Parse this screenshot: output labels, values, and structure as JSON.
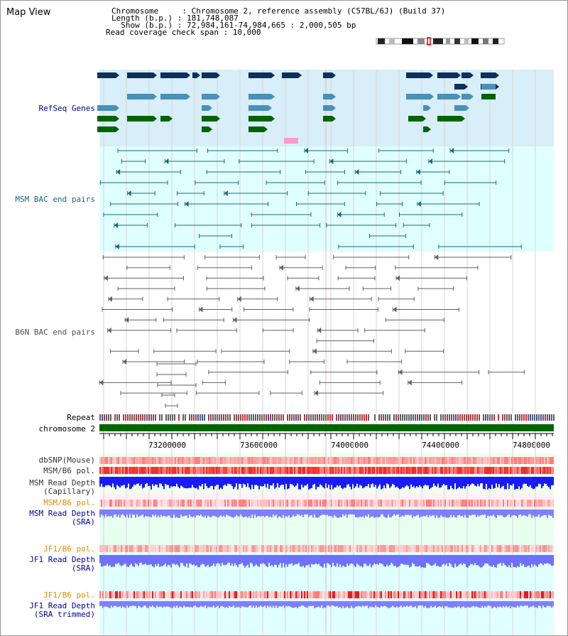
{
  "page_title": "Map View",
  "header": {
    "chromosome_label": "Chromosome     : Chromosome 2, reference assembly (C57BL/6J) (Build 37)",
    "length_label": "Length (b.p.) : 181,748,087",
    "show_label": "  Show (b.p.) : 72,984,161-74,984,665 : 2,000,505 bp",
    "coverage_label": "Read coverage check span : 10,000"
  },
  "tracks": {
    "refseq": "RefSeq Genes",
    "msm_bac": "MSM BAC end pairs",
    "b6n_bac": "B6N BAC end pairs",
    "repeat": "Repeat",
    "chromosome": "chromosome 2",
    "dbsnp": "dbSNP(Mouse)",
    "msm_b6_pol_1": "MSM/B6 pol.",
    "msm_read_depth_cap_1": "MSM Read Depth",
    "msm_read_depth_cap_2": "(Capillary)",
    "msm_b6_pol_2": "MSM/B6 pol.",
    "msm_read_depth_sra_1": "MSM Read Depth",
    "msm_read_depth_sra_2": "(SRA)",
    "jf1_b6_pol_1": "JF1/B6 pol.",
    "jf1_read_depth_sra_1": "JF1 Read Depth",
    "jf1_read_depth_sra_2": "(SRA)",
    "jf1_b6_pol_2": "JF1/B6 pol.",
    "jf1_read_depth_trim_1": "JF1 Read Depth",
    "jf1_read_depth_trim_2": "(SRA trimmed)"
  },
  "axis_ticks": [
    "73200000",
    "73600000",
    "74000000",
    "74400000",
    "74800000"
  ],
  "colors": {
    "refseq_bg": "#d8eef8",
    "bac_bg": "#e0ffff",
    "msm_color": "#186880",
    "b6n_color": "#606060",
    "dark_navy": "#0c2f5e",
    "steel_blue": "#4a90b8",
    "green": "#006400",
    "pink": "#ff99cc",
    "chromosome_green": "#006400",
    "label_blue": "#0000a0",
    "label_orange": "#e08c00"
  }
}
